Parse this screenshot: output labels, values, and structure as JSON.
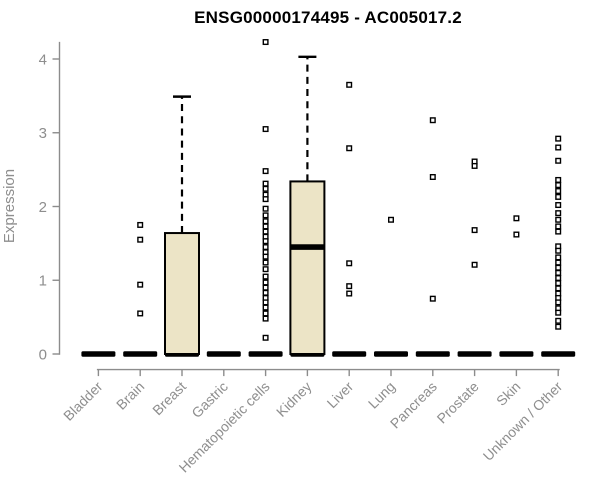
{
  "chart_data": {
    "type": "boxplot",
    "title": "ENSG00000174495 - AC005017.2",
    "ylabel": "Expression",
    "xlabel": "",
    "ylim": [
      0,
      4.3
    ],
    "yticks": [
      0,
      1,
      2,
      3,
      4
    ],
    "grid": false,
    "legend": "none",
    "categories": [
      "Bladder",
      "Brain",
      "Breast",
      "Gastric",
      "Hematopoietic cells",
      "Kidney",
      "Liver",
      "Lung",
      "Pancreas",
      "Prostate",
      "Skin",
      "Unknown / Other"
    ],
    "series": [
      {
        "name": "Bladder",
        "q1": 0,
        "median": 0,
        "q3": 0,
        "whisker_low": 0,
        "whisker_high": 0,
        "outliers": []
      },
      {
        "name": "Brain",
        "q1": 0,
        "median": 0,
        "q3": 0,
        "whisker_low": 0,
        "whisker_high": 0,
        "outliers": [
          1.75,
          1.55,
          0.94,
          0.55
        ]
      },
      {
        "name": "Breast",
        "q1": 0,
        "median": 0,
        "q3": 1.64,
        "whisker_low": 0,
        "whisker_high": 3.49,
        "outliers": []
      },
      {
        "name": "Gastric",
        "q1": 0,
        "median": 0,
        "q3": 0,
        "whisker_low": 0,
        "whisker_high": 0,
        "outliers": []
      },
      {
        "name": "Hematopoietic cells",
        "q1": 0,
        "median": 0,
        "q3": 0,
        "whisker_low": 0,
        "whisker_high": 0,
        "outliers": [
          4.23,
          3.05,
          2.48,
          2.31,
          2.24,
          2.16,
          2.1,
          1.97,
          1.88,
          1.8,
          1.73,
          1.66,
          1.59,
          1.53,
          1.45,
          1.38,
          1.32,
          1.24,
          1.15,
          1.05,
          0.97,
          0.9,
          0.83,
          0.76,
          0.7,
          0.63,
          0.55,
          0.48,
          0.22
        ]
      },
      {
        "name": "Kidney",
        "q1": 0,
        "median": 1.45,
        "q3": 2.34,
        "whisker_low": 0,
        "whisker_high": 4.03,
        "outliers": []
      },
      {
        "name": "Liver",
        "q1": 0,
        "median": 0,
        "q3": 0,
        "whisker_low": 0,
        "whisker_high": 0,
        "outliers": [
          3.65,
          2.79,
          1.23,
          0.92,
          0.82
        ]
      },
      {
        "name": "Lung",
        "q1": 0,
        "median": 0,
        "q3": 0,
        "whisker_low": 0,
        "whisker_high": 0,
        "outliers": [
          1.82
        ]
      },
      {
        "name": "Pancreas",
        "q1": 0,
        "median": 0,
        "q3": 0,
        "whisker_low": 0,
        "whisker_high": 0,
        "outliers": [
          3.17,
          2.4,
          0.75
        ]
      },
      {
        "name": "Prostate",
        "q1": 0,
        "median": 0,
        "q3": 0,
        "whisker_low": 0,
        "whisker_high": 0,
        "outliers": [
          2.61,
          2.55,
          1.68,
          1.21
        ]
      },
      {
        "name": "Skin",
        "q1": 0,
        "median": 0,
        "q3": 0,
        "whisker_low": 0,
        "whisker_high": 0,
        "outliers": [
          1.84,
          1.62
        ]
      },
      {
        "name": "Unknown / Other",
        "q1": 0,
        "median": 0,
        "q3": 0,
        "whisker_low": 0,
        "whisker_high": 0,
        "outliers": [
          2.92,
          2.8,
          2.62,
          2.36,
          2.29,
          2.21,
          2.13,
          2.02,
          1.91,
          1.82,
          1.73,
          1.66,
          1.46,
          1.4,
          1.31,
          1.24,
          1.17,
          1.1,
          1.03,
          0.96,
          0.89,
          0.82,
          0.76,
          0.7,
          0.62,
          0.56,
          0.45,
          0.37
        ]
      }
    ],
    "colors": {
      "box_fill": "#ece4c6",
      "box_stroke": "#000000",
      "median": "#000000",
      "outlier_fill": "#ffffff",
      "axis": "#8c8c8c",
      "tick_label": "#8e8e8e",
      "title": "#000000",
      "background": "#ffffff"
    }
  }
}
